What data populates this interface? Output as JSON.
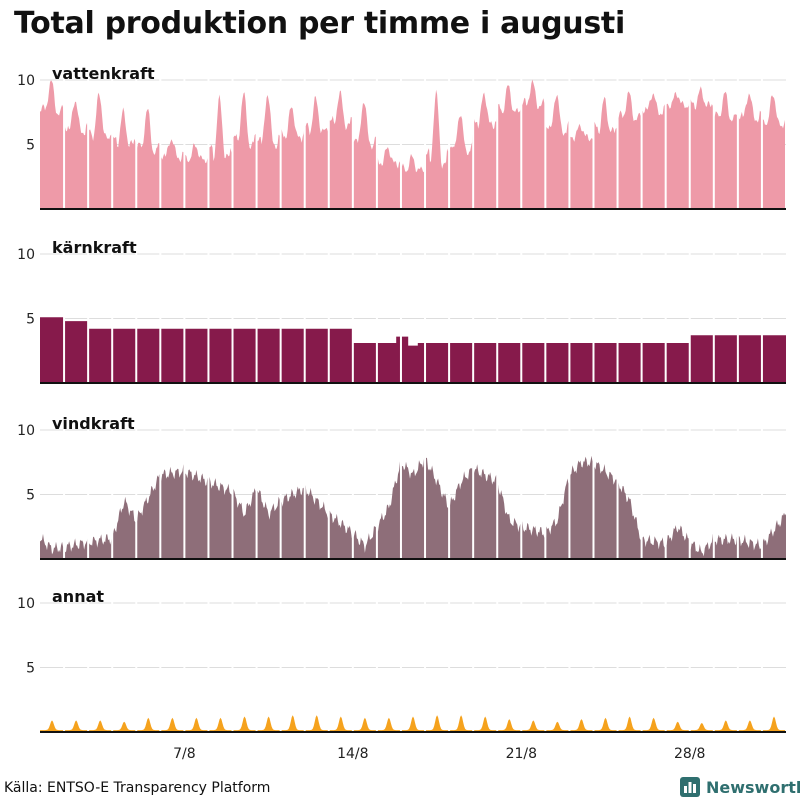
{
  "title": "Total produktion per timme i augusti",
  "source": "Källa: ENTSO-E Transparency Platform",
  "brand": "Newsworthy",
  "colors": {
    "vattenkraft": "#ee9aa8",
    "karnkraft": "#861a4b",
    "vindkraft": "#8e6e79",
    "annat": "#f5a21d",
    "grid": "#dddddd",
    "baseline": "#111111",
    "brand": "#2f6f6f"
  },
  "chart_data": {
    "type": "area",
    "x_unit": "day",
    "x_range": [
      1,
      32
    ],
    "ylim": [
      0,
      11
    ],
    "y_ticks": [
      5,
      10
    ],
    "x_ticks": [
      {
        "value": 7,
        "label": "7/8"
      },
      {
        "value": 14,
        "label": "14/8"
      },
      {
        "value": 21,
        "label": "21/8"
      },
      {
        "value": 28,
        "label": "28/8"
      }
    ],
    "grid": true,
    "series": [
      {
        "name": "vattenkraft",
        "key": "vattenkraft",
        "pattern": "daily",
        "daily": [
          {
            "day": 1,
            "min": 7.5,
            "max": 10.0
          },
          {
            "day": 2,
            "min": 6.0,
            "max": 8.5
          },
          {
            "day": 3,
            "min": 5.5,
            "max": 9.0
          },
          {
            "day": 4,
            "min": 5.0,
            "max": 7.5
          },
          {
            "day": 5,
            "min": 4.5,
            "max": 7.8
          },
          {
            "day": 6,
            "min": 4.0,
            "max": 5.5
          },
          {
            "day": 7,
            "min": 3.8,
            "max": 5.0
          },
          {
            "day": 8,
            "min": 4.0,
            "max": 8.5
          },
          {
            "day": 9,
            "min": 5.0,
            "max": 9.0
          },
          {
            "day": 10,
            "min": 5.0,
            "max": 9.0
          },
          {
            "day": 11,
            "min": 5.5,
            "max": 8.0
          },
          {
            "day": 12,
            "min": 6.0,
            "max": 8.5
          },
          {
            "day": 13,
            "min": 6.5,
            "max": 9.0
          },
          {
            "day": 14,
            "min": 5.0,
            "max": 8.5
          },
          {
            "day": 15,
            "min": 3.5,
            "max": 4.8
          },
          {
            "day": 16,
            "min": 3.0,
            "max": 4.0
          },
          {
            "day": 17,
            "min": 3.5,
            "max": 9.0
          },
          {
            "day": 18,
            "min": 4.5,
            "max": 7.5
          },
          {
            "day": 19,
            "min": 6.5,
            "max": 9.0
          },
          {
            "day": 20,
            "min": 7.5,
            "max": 9.5
          },
          {
            "day": 21,
            "min": 8.0,
            "max": 9.8
          },
          {
            "day": 22,
            "min": 6.0,
            "max": 9.0
          },
          {
            "day": 23,
            "min": 5.5,
            "max": 6.5
          },
          {
            "day": 24,
            "min": 6.0,
            "max": 8.5
          },
          {
            "day": 25,
            "min": 7.0,
            "max": 9.0
          },
          {
            "day": 26,
            "min": 7.5,
            "max": 9.0
          },
          {
            "day": 27,
            "min": 8.0,
            "max": 9.0
          },
          {
            "day": 28,
            "min": 8.0,
            "max": 9.2
          },
          {
            "day": 29,
            "min": 7.0,
            "max": 9.0
          },
          {
            "day": 30,
            "min": 7.0,
            "max": 9.0
          },
          {
            "day": 31,
            "min": 6.5,
            "max": 9.0
          }
        ]
      },
      {
        "name": "kärnkraft",
        "key": "karnkraft",
        "pattern": "steps",
        "steps": [
          {
            "from": 1,
            "to": 2,
            "value": 5.1
          },
          {
            "from": 2,
            "to": 3,
            "value": 4.8
          },
          {
            "from": 3,
            "to": 14,
            "value": 4.2
          },
          {
            "from": 14,
            "to": 15.8,
            "value": 3.1
          },
          {
            "from": 15.8,
            "to": 16.3,
            "value": 3.6
          },
          {
            "from": 16.3,
            "to": 16.7,
            "value": 2.9
          },
          {
            "from": 16.7,
            "to": 28,
            "value": 3.1
          },
          {
            "from": 28,
            "to": 32,
            "value": 3.7
          }
        ]
      },
      {
        "name": "vindkraft",
        "key": "vindkraft",
        "pattern": "points",
        "points": [
          [
            1,
            1.6
          ],
          [
            1.5,
            0.8
          ],
          [
            2,
            0.9
          ],
          [
            3,
            1.3
          ],
          [
            4,
            1.6
          ],
          [
            4.5,
            4.5
          ],
          [
            5,
            3.0
          ],
          [
            6,
            6.5
          ],
          [
            7,
            6.8
          ],
          [
            8,
            6.0
          ],
          [
            9,
            5.2
          ],
          [
            9.5,
            3.5
          ],
          [
            10,
            5.5
          ],
          [
            10.5,
            3.5
          ],
          [
            11,
            4.5
          ],
          [
            12,
            5.5
          ],
          [
            13,
            3.5
          ],
          [
            14,
            2.0
          ],
          [
            14.5,
            1.0
          ],
          [
            15,
            2.5
          ],
          [
            15.5,
            4.0
          ],
          [
            16,
            7.5
          ],
          [
            16.5,
            6.5
          ],
          [
            17,
            7.8
          ],
          [
            17.5,
            6.0
          ],
          [
            18,
            4.0
          ],
          [
            18.5,
            6.0
          ],
          [
            19,
            7.0
          ],
          [
            20,
            6.0
          ],
          [
            20.5,
            3.0
          ],
          [
            21,
            2.5
          ],
          [
            22,
            2.0
          ],
          [
            22.5,
            3.0
          ],
          [
            23,
            6.5
          ],
          [
            23.5,
            7.5
          ],
          [
            24,
            7.5
          ],
          [
            25,
            6.0
          ],
          [
            25.5,
            4.5
          ],
          [
            26,
            1.5
          ],
          [
            27,
            1.2
          ],
          [
            27.5,
            2.5
          ],
          [
            28,
            1.3
          ],
          [
            28.5,
            0.5
          ],
          [
            29,
            1.5
          ],
          [
            30,
            1.5
          ],
          [
            31,
            1.0
          ],
          [
            32,
            3.5
          ]
        ]
      },
      {
        "name": "annat",
        "key": "annat",
        "pattern": "daily_peak",
        "base": 0.15,
        "peaks": [
          0.9,
          0.9,
          0.9,
          0.8,
          1.1,
          1.1,
          1.1,
          1.1,
          1.2,
          1.2,
          1.3,
          1.3,
          1.2,
          1.1,
          1.1,
          1.2,
          1.3,
          1.3,
          1.2,
          1.0,
          0.9,
          0.8,
          1.0,
          1.1,
          1.2,
          1.1,
          0.8,
          0.7,
          0.9,
          0.9,
          1.2
        ]
      }
    ]
  }
}
